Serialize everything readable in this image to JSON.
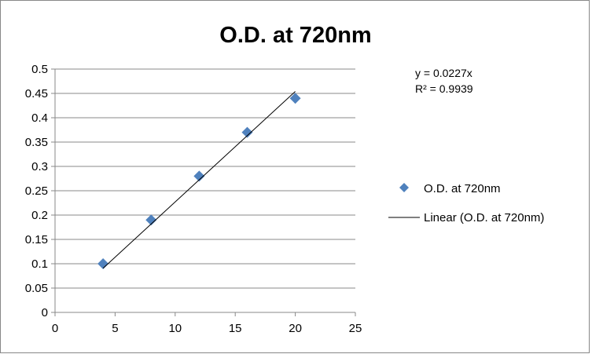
{
  "chart_data": {
    "type": "scatter",
    "title": "O.D. at 720nm",
    "xlabel": "",
    "ylabel": "",
    "xlim": [
      0,
      25
    ],
    "ylim": [
      0,
      0.5
    ],
    "x_ticks": [
      "0",
      "5",
      "10",
      "15",
      "20",
      "25"
    ],
    "y_ticks": [
      "0",
      "0.05",
      "0.1",
      "0.15",
      "0.2",
      "0.25",
      "0.3",
      "0.35",
      "0.4",
      "0.45",
      "0.5"
    ],
    "grid": "horizontal",
    "legend_position": "right",
    "series": [
      {
        "name": "O.D. at 720nm",
        "color": "#4f81bd",
        "marker": "diamond",
        "x": [
          4,
          8,
          12,
          16,
          20
        ],
        "y": [
          0.1,
          0.19,
          0.28,
          0.37,
          0.44
        ]
      }
    ],
    "trendline": {
      "name": "Linear (O.D. at 720nm)",
      "slope": 0.0227,
      "intercept": 0,
      "x_range": [
        4,
        20
      ],
      "color": "#000000",
      "equation": "y = 0.0227x",
      "r2": "R² = 0.9939"
    }
  }
}
